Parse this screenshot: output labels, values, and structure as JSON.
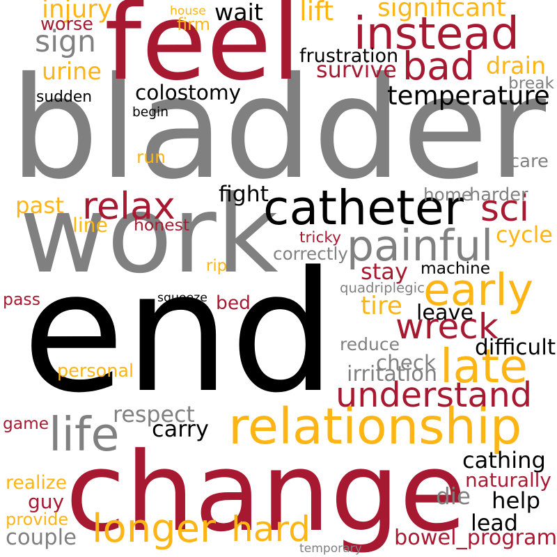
{
  "colors": {
    "gray": "#808080",
    "red": "#a71930",
    "black": "#000000",
    "gold": "#fdb515"
  },
  "words": [
    {
      "text": "bladder",
      "color": "gray"
    },
    {
      "text": "end",
      "color": "black"
    },
    {
      "text": "work",
      "color": "gray"
    },
    {
      "text": "change",
      "color": "red"
    },
    {
      "text": "feel",
      "color": "red"
    },
    {
      "text": "catheter",
      "color": "black"
    },
    {
      "text": "relationship",
      "color": "gold"
    },
    {
      "text": "instead",
      "color": "red"
    },
    {
      "text": "longer",
      "color": "gold"
    },
    {
      "text": "hard",
      "color": "gold"
    },
    {
      "text": "understand",
      "color": "red"
    },
    {
      "text": "painful",
      "color": "gray"
    },
    {
      "text": "late",
      "color": "gold"
    },
    {
      "text": "early",
      "color": "gold"
    },
    {
      "text": "wreck",
      "color": "red"
    },
    {
      "text": "life",
      "color": "gray"
    },
    {
      "text": "bad",
      "color": "red"
    },
    {
      "text": "relax",
      "color": "red"
    },
    {
      "text": "temperature",
      "color": "black"
    },
    {
      "text": "sci",
      "color": "red"
    },
    {
      "text": "sign",
      "color": "gray"
    },
    {
      "text": "colostomy",
      "color": "black"
    },
    {
      "text": "bowel_program",
      "color": "red"
    },
    {
      "text": "significant",
      "color": "gold"
    },
    {
      "text": "injury",
      "color": "gold"
    },
    {
      "text": "wait",
      "color": "black"
    },
    {
      "text": "lift",
      "color": "gold"
    },
    {
      "text": "worse",
      "color": "red"
    },
    {
      "text": "urine",
      "color": "gold"
    },
    {
      "text": "survive",
      "color": "red"
    },
    {
      "text": "drain",
      "color": "gold"
    },
    {
      "text": "frustration",
      "color": "black"
    },
    {
      "text": "sudden",
      "color": "black"
    },
    {
      "text": "stay",
      "color": "red"
    },
    {
      "text": "check",
      "color": "gray"
    },
    {
      "text": "respect",
      "color": "gray"
    },
    {
      "text": "carry",
      "color": "black"
    },
    {
      "text": "cathing",
      "color": "black"
    },
    {
      "text": "help",
      "color": "black"
    },
    {
      "text": "lead",
      "color": "black"
    },
    {
      "text": "couple",
      "color": "gray"
    },
    {
      "text": "cycle",
      "color": "gold"
    },
    {
      "text": "tire",
      "color": "gold"
    },
    {
      "text": "past",
      "color": "gold"
    },
    {
      "text": "fight",
      "color": "black"
    },
    {
      "text": "home",
      "color": "gray"
    },
    {
      "text": "bed",
      "color": "red"
    },
    {
      "text": "machine",
      "color": "black"
    },
    {
      "text": "leave",
      "color": "black"
    },
    {
      "text": "difficult",
      "color": "black"
    },
    {
      "text": "guy",
      "color": "red"
    },
    {
      "text": "game",
      "color": "red"
    },
    {
      "text": "naturally",
      "color": "red"
    },
    {
      "text": "die",
      "color": "gray"
    },
    {
      "text": "personal",
      "color": "gold"
    },
    {
      "text": "reduce",
      "color": "gray"
    },
    {
      "text": "irritation",
      "color": "gray"
    },
    {
      "text": "correctly",
      "color": "gray"
    },
    {
      "text": "break",
      "color": "gray"
    },
    {
      "text": "care",
      "color": "gray"
    },
    {
      "text": "harder",
      "color": "gray"
    },
    {
      "text": "run",
      "color": "gold"
    },
    {
      "text": "honest",
      "color": "red"
    },
    {
      "text": "line",
      "color": "gold"
    },
    {
      "text": "pass",
      "color": "red"
    },
    {
      "text": "realize",
      "color": "gold"
    },
    {
      "text": "provide",
      "color": "gold"
    },
    {
      "text": "firm",
      "color": "gold"
    },
    {
      "text": "house",
      "color": "gold"
    },
    {
      "text": "begin",
      "color": "black"
    },
    {
      "text": "tricky",
      "color": "red"
    },
    {
      "text": "rip",
      "color": "gold"
    },
    {
      "text": "squeeze",
      "color": "black"
    },
    {
      "text": "quadriplegic",
      "color": "gray"
    },
    {
      "text": "temporary",
      "color": "gray"
    }
  ]
}
